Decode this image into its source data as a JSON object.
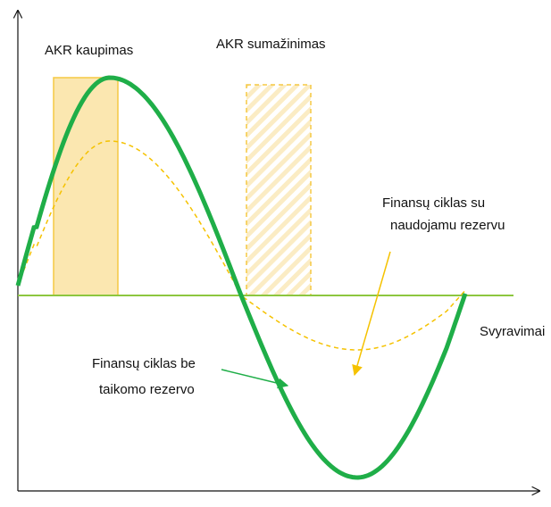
{
  "labels": {
    "accumulation": "AKR kaupimas",
    "reduction": "AKR sumažinimas",
    "with_reserve": [
      "Finansų ciklas su",
      "naudojamu rezervu"
    ],
    "fluctuations": "Svyravimai",
    "without_reserve": [
      "Finansų ciklas be",
      "taikomo rezervo"
    ]
  }
}
